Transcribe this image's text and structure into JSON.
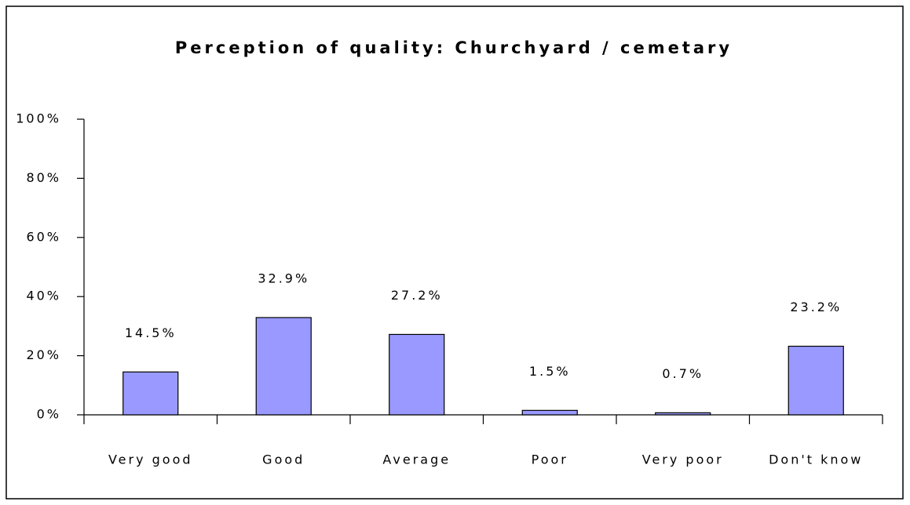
{
  "chart_data": {
    "type": "bar",
    "title": "Perception of quality: Churchyard / cemetary",
    "categories": [
      "Very good",
      "Good",
      "Average",
      "Poor",
      "Very poor",
      "Don't know"
    ],
    "values": [
      14.5,
      32.9,
      27.2,
      1.5,
      0.7,
      23.2
    ],
    "value_labels": [
      "14.5%",
      "32.9%",
      "27.2%",
      "1.5%",
      "0.7%",
      "23.2%"
    ],
    "color": "#9999ff",
    "ylim": [
      0,
      100
    ],
    "yticks": [
      {
        "value": 0,
        "label": "0%"
      },
      {
        "value": 20,
        "label": "20%"
      },
      {
        "value": 40,
        "label": "40%"
      },
      {
        "value": 60,
        "label": "60%"
      },
      {
        "value": 80,
        "label": "80%"
      },
      {
        "value": 100,
        "label": "100%"
      }
    ],
    "grid": false
  }
}
